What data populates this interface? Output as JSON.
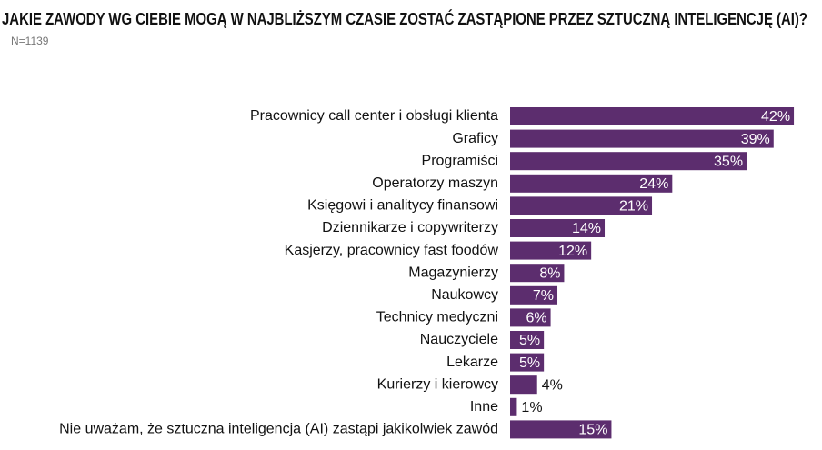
{
  "chart_data": {
    "type": "bar",
    "orientation": "horizontal",
    "title": "JAKIE ZAWODY WG CIEBIE MOGĄ W NAJBLIŻSZYM CZASIE ZOSTAĆ ZASTĄPIONE PRZEZ SZTUCZNĄ INTELIGENCJĘ (AI)?",
    "subtitle": "N=1139",
    "categories": [
      "Pracownicy call center i obsługi klienta",
      "Graficy",
      "Programiści",
      "Operatorzy maszyn",
      "Księgowi i analitycy finansowi",
      "Dziennikarze i copywriterzy",
      "Kasjerzy, pracownicy fast foodów",
      "Magazynierzy",
      "Naukowcy",
      "Technicy medyczni",
      "Nauczyciele",
      "Lekarze",
      "Kurierzy i kierowcy",
      "Inne",
      "Nie uważam, że sztuczna inteligencja (AI) zastąpi jakikolwiek zawód"
    ],
    "values": [
      42,
      39,
      35,
      24,
      21,
      14,
      12,
      8,
      7,
      6,
      5,
      5,
      4,
      1,
      15
    ],
    "value_labels": [
      "42%",
      "39%",
      "35%",
      "24%",
      "21%",
      "14%",
      "12%",
      "8%",
      "7%",
      "6%",
      "5%",
      "5%",
      "4%",
      "1%",
      "15%"
    ],
    "color": "#5c2d6e"
  }
}
